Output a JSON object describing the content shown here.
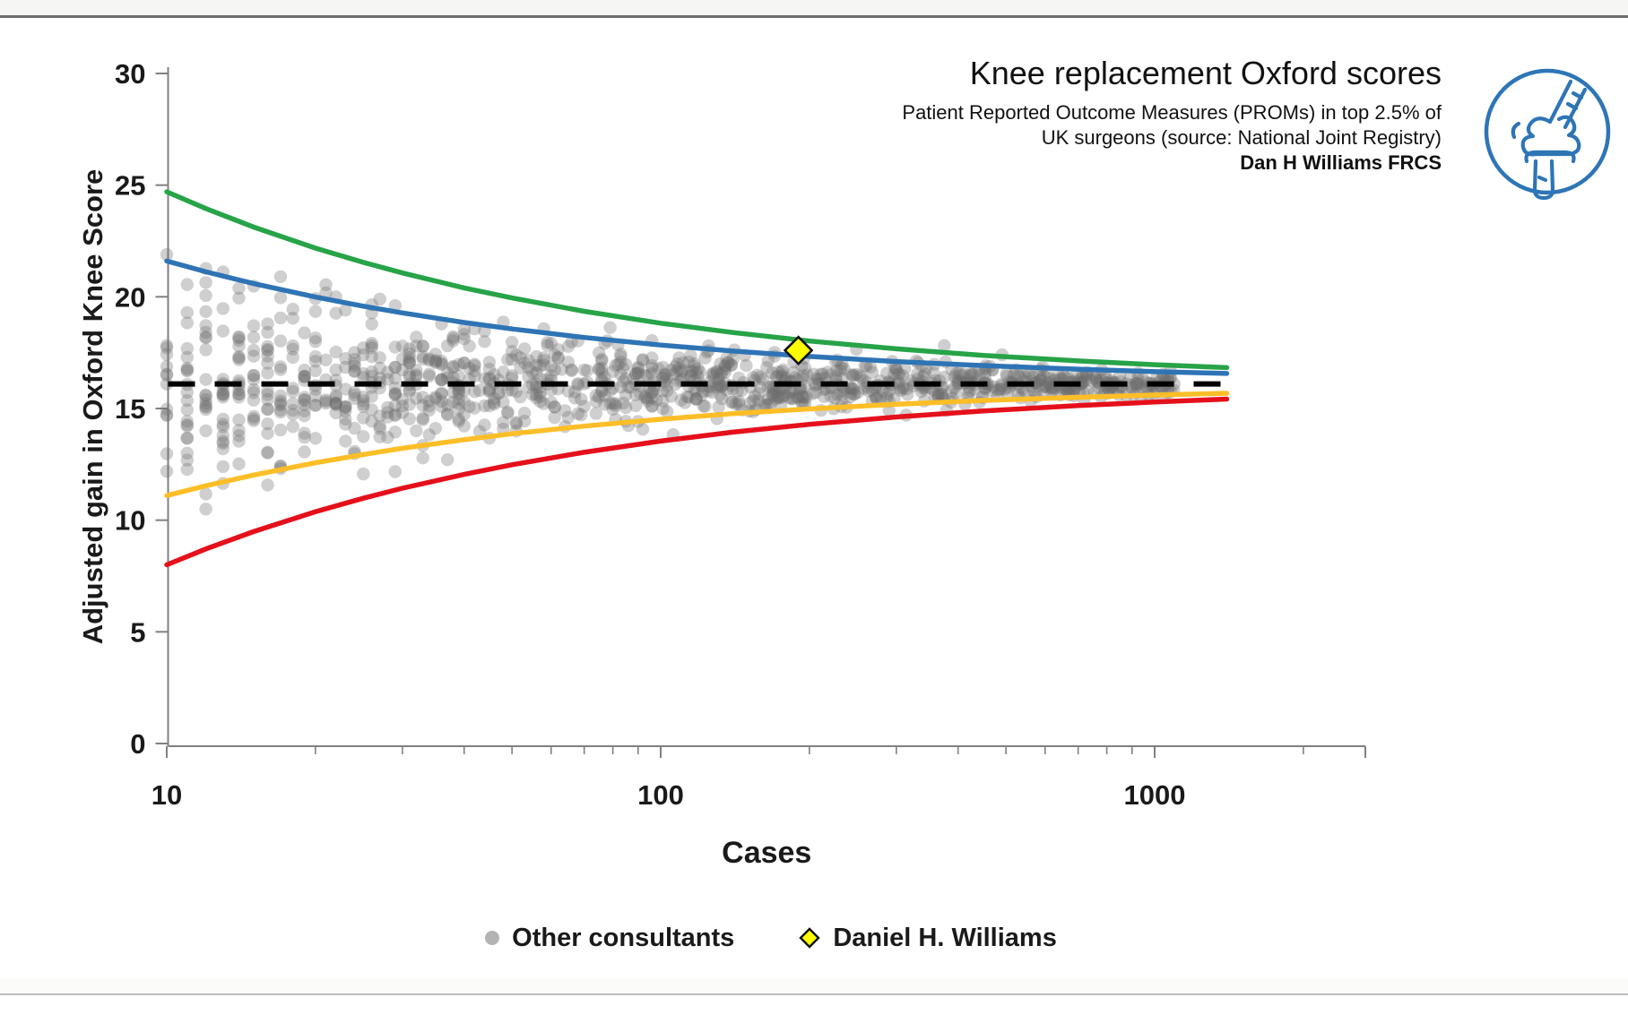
{
  "page": {
    "background": "#ffffff",
    "top_rule_color": "#6e6e6e",
    "bottom_rule_color": "#bdbdbd"
  },
  "header": {
    "title": "Knee replacement Oxford scores",
    "subtitle_line1": "Patient Reported Outcome Measures (PROMs) in top 2.5% of",
    "subtitle_line2": "UK surgeons (source: National Joint Registry)",
    "subtitle_line3": "Dan H Williams FRCS"
  },
  "logo": {
    "shape": "circle-outline-knee-joint",
    "color": "#2e75b6"
  },
  "chart_data": {
    "type": "scatter",
    "subtype": "funnel-plot",
    "title": "Knee replacement Oxford scores",
    "xlabel": "Cases",
    "ylabel": "Adjusted gain in Oxford Knee Score",
    "x_scale": "log10",
    "x_ticks": [
      10,
      100,
      1000
    ],
    "x_range": [
      10,
      3000
    ],
    "y_ticks": [
      0,
      5,
      10,
      15,
      20,
      25,
      30
    ],
    "y_range": [
      0,
      30
    ],
    "grid": false,
    "legend_position": "bottom-center",
    "axis_color": "#808080",
    "tick_label_color": "#1a1a1a",
    "mean_line": {
      "value": 16.1,
      "style": "dashed",
      "color": "#000000",
      "x_from": 10,
      "x_to": 1400
    },
    "control_limits": [
      {
        "name": "upper-outer-limit",
        "color": "#27a348",
        "points": [
          [
            10,
            24.7
          ],
          [
            12,
            23.95
          ],
          [
            15,
            23.12
          ],
          [
            20,
            22.18
          ],
          [
            25,
            21.54
          ],
          [
            30,
            21.07
          ],
          [
            40,
            20.4
          ],
          [
            50,
            19.95
          ],
          [
            70,
            19.35
          ],
          [
            100,
            18.82
          ],
          [
            140,
            18.4
          ],
          [
            200,
            18.02
          ],
          [
            300,
            17.67
          ],
          [
            450,
            17.38
          ],
          [
            700,
            17.13
          ],
          [
            1000,
            16.96
          ],
          [
            1400,
            16.83
          ]
        ]
      },
      {
        "name": "upper-inner-limit",
        "color": "#2e74b5",
        "points": [
          [
            10,
            21.6
          ],
          [
            12,
            21.12
          ],
          [
            15,
            20.59
          ],
          [
            20,
            19.99
          ],
          [
            25,
            19.58
          ],
          [
            30,
            19.28
          ],
          [
            40,
            18.85
          ],
          [
            50,
            18.56
          ],
          [
            70,
            18.18
          ],
          [
            100,
            17.84
          ],
          [
            140,
            17.57
          ],
          [
            200,
            17.33
          ],
          [
            300,
            17.1
          ],
          [
            450,
            16.92
          ],
          [
            700,
            16.76
          ],
          [
            1000,
            16.65
          ],
          [
            1400,
            16.57
          ]
        ]
      },
      {
        "name": "lower-inner-limit",
        "color": "#fdbe27",
        "points": [
          [
            10,
            11.1
          ],
          [
            12,
            11.54
          ],
          [
            15,
            12.02
          ],
          [
            20,
            12.57
          ],
          [
            25,
            12.94
          ],
          [
            30,
            13.22
          ],
          [
            40,
            13.6
          ],
          [
            50,
            13.87
          ],
          [
            70,
            14.21
          ],
          [
            100,
            14.52
          ],
          [
            140,
            14.77
          ],
          [
            200,
            14.98
          ],
          [
            300,
            15.19
          ],
          [
            450,
            15.36
          ],
          [
            700,
            15.5
          ],
          [
            1000,
            15.6
          ],
          [
            1400,
            15.68
          ]
        ]
      },
      {
        "name": "lower-outer-limit",
        "color": "#e5101b",
        "points": [
          [
            10,
            8.0
          ],
          [
            12,
            8.71
          ],
          [
            15,
            9.49
          ],
          [
            20,
            10.38
          ],
          [
            25,
            10.98
          ],
          [
            30,
            11.43
          ],
          [
            40,
            12.05
          ],
          [
            50,
            12.48
          ],
          [
            70,
            13.04
          ],
          [
            100,
            13.54
          ],
          [
            140,
            13.94
          ],
          [
            200,
            14.29
          ],
          [
            300,
            14.62
          ],
          [
            450,
            14.89
          ],
          [
            700,
            15.13
          ],
          [
            1000,
            15.29
          ],
          [
            1400,
            15.42
          ]
        ]
      }
    ],
    "highlight_point": {
      "label": "Daniel H. Williams",
      "cases": 190,
      "value": 17.6,
      "marker": "diamond",
      "fill": "#ffff00",
      "stroke": "#111111"
    },
    "scatter_series": {
      "label": "Other consultants",
      "color": "#6e6e6e",
      "opacity": 0.33,
      "radius": 7.2,
      "count": 1200,
      "seed": 42,
      "distribution": {
        "x": "log-uniform-integer-cases",
        "log10_x_min": 1.0,
        "log10_x_max": 3.04,
        "y": "normal-around-mean",
        "mean": 16.1,
        "sigma_times_sqrt_n": 8.5,
        "clip_y": [
          4.8,
          29.2
        ]
      }
    },
    "legend": [
      {
        "label": "Other consultants",
        "marker": "circle",
        "marker_color": "#b3b3b3"
      },
      {
        "label": "Daniel H. Williams",
        "marker": "diamond",
        "marker_color": "#ffff00"
      }
    ]
  }
}
